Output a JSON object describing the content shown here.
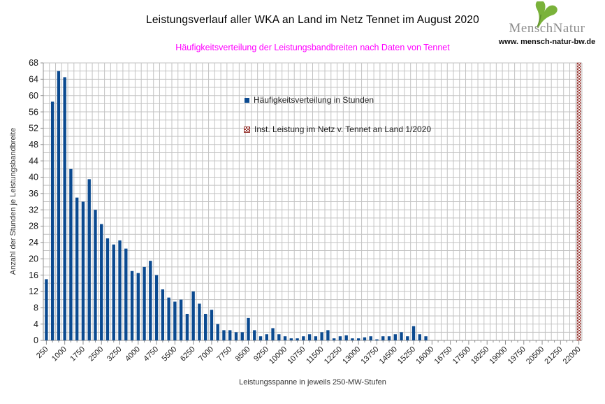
{
  "header": {
    "title": "Leistungsverlauf aller WKA an Land im Netz Tennet im August 2020",
    "subtitle": "Häufigkeitsverteilung der Leistungsbandbreiten nach Daten von Tennet",
    "logo": {
      "brand": "MenschNatur",
      "website": "www. mensch-natur-bw.de"
    }
  },
  "chart_data": {
    "type": "bar",
    "title": "Leistungsverlauf aller WKA an Land im Netz Tennet im August 2020",
    "subtitle": "Häufigkeitsverteilung der Leistungsbandbreiten nach Daten von Tennet",
    "xlabel": "Leistungsspanne in jeweils 250-MW-Stufen",
    "ylabel": "Anzahl der Stunden je Leistungsbandbreite",
    "ylim": [
      0,
      68
    ],
    "y_tick_step": 4,
    "y_grid_step": 2,
    "x_start": 250,
    "x_step": 250,
    "bin_count": 88,
    "x_label_every": 3,
    "x_tick_labels": [
      250,
      1000,
      1750,
      2500,
      3250,
      4000,
      4750,
      5500,
      6250,
      7000,
      7750,
      8500,
      9250,
      10000,
      10750,
      11500,
      12250,
      13000,
      13750,
      14500,
      15250,
      16000,
      16750,
      17500,
      18250,
      19000,
      19750,
      20500,
      21250,
      22000
    ],
    "grid": true,
    "legend_position": "inside-top-center",
    "legend": [
      {
        "label": "Häufigkeitsverteilung in Stunden",
        "swatch": "solid-blue"
      },
      {
        "label": "Inst. Leistung im Netz v. Tennet an Land 1/2020",
        "swatch": "crosshatch-red"
      }
    ],
    "series": [
      {
        "name": "Häufigkeitsverteilung in Stunden",
        "values": [
          15,
          58.5,
          66,
          64.5,
          42,
          35,
          34,
          39.5,
          32,
          28.5,
          25,
          23.5,
          24.5,
          22.5,
          17,
          16.5,
          18,
          19.5,
          16,
          12.5,
          10.5,
          9.5,
          10,
          6.5,
          12,
          9,
          6.5,
          7.5,
          4,
          2.5,
          2.5,
          2,
          2,
          5.5,
          2.5,
          1,
          1.5,
          3,
          1.5,
          1,
          0.5,
          0.5,
          1,
          1.5,
          1,
          2,
          2.5,
          0.5,
          1,
          1.25,
          0.5,
          0.5,
          0.75,
          1,
          0.25,
          1,
          1,
          1.5,
          2,
          1,
          3.5,
          1.5,
          1,
          0,
          0,
          0,
          0,
          0,
          0,
          0,
          0,
          0,
          0,
          0,
          0,
          0,
          0,
          0,
          0,
          0,
          0,
          0,
          0,
          0,
          0,
          0,
          0,
          0
        ]
      }
    ],
    "capacity_marker": {
      "name": "Inst. Leistung im Netz v. Tennet an Land 1/2020",
      "x": 22000,
      "spans_full_height": true,
      "style": "crosshatch"
    },
    "colors": {
      "bar": "#0b4a90",
      "marker": "#993a35",
      "grid": "#c3c3c3",
      "axis": "#8f8f8f",
      "subtitle": "#ff00ff",
      "tick_text": "#1a1a1a",
      "leaf_green": "#7ab23a",
      "brand_gray": "#8d8d8d"
    }
  }
}
